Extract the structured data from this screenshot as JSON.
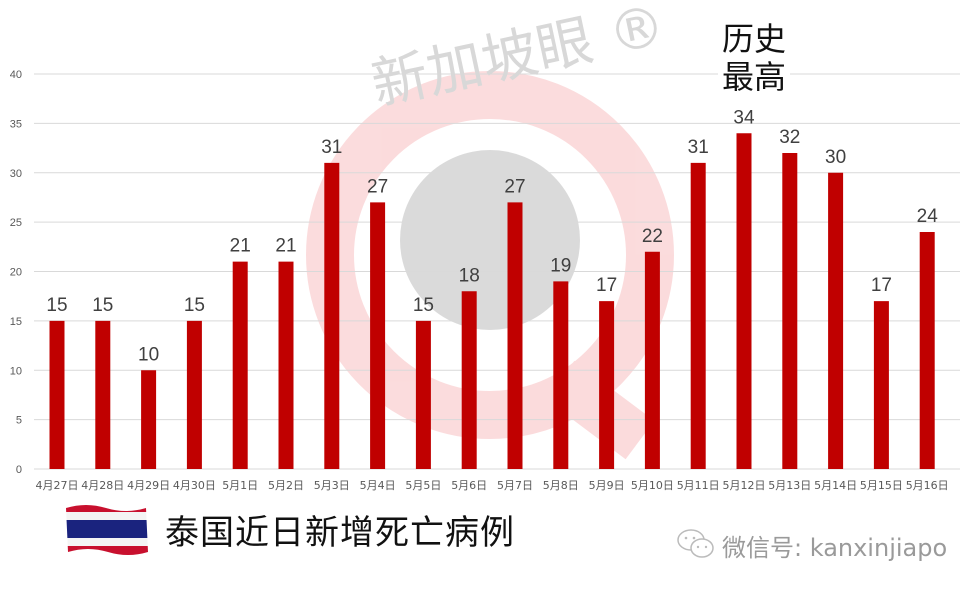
{
  "chart_data": {
    "type": "bar",
    "title": "泰国近日新增死亡病例",
    "xlabel": "",
    "ylabel": "",
    "categories": [
      "4月27日",
      "4月28日",
      "4月29日",
      "4月30日",
      "5月1日",
      "5月2日",
      "5月3日",
      "5月4日",
      "5月5日",
      "5月6日",
      "5月7日",
      "5月8日",
      "5月9日",
      "5月10日",
      "5月11日",
      "5月12日",
      "5月13日",
      "5月14日",
      "5月15日",
      "5月16日"
    ],
    "values": [
      15,
      15,
      10,
      15,
      21,
      21,
      31,
      27,
      15,
      18,
      27,
      19,
      17,
      22,
      31,
      34,
      32,
      30,
      17,
      24
    ],
    "ylim": [
      0,
      40
    ],
    "yticks": [
      0,
      5,
      10,
      15,
      20,
      25,
      30,
      35,
      40
    ],
    "grid": true,
    "legend": null,
    "bar_color": "#c00000",
    "data_labels": true,
    "annotations": [
      {
        "text": "历史最高",
        "category": "5月12日"
      }
    ]
  },
  "annotation": {
    "line1": "历史",
    "line2": "最高"
  },
  "footer": {
    "title": "泰国近日新增死亡病例",
    "wechat": "微信号: kanxinjiapo"
  },
  "watermark": {
    "text": "新加坡眼",
    "mark": "®"
  },
  "colors": {
    "bar": "#c00000",
    "grid": "#d9d9d9",
    "axis_text": "#595959",
    "label_text": "#404040"
  }
}
